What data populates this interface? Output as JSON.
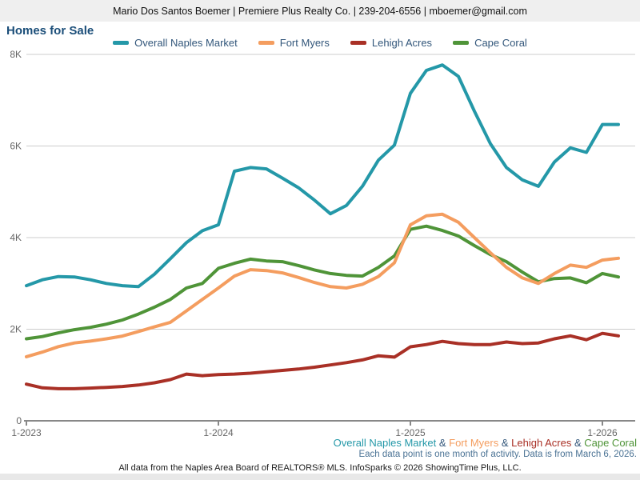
{
  "header": {
    "contact": "Mario Dos Santos Boemer | Premiere Plus Realty Co. | 239-204-6556 | mboemer@gmail.com"
  },
  "title": "Homes for Sale",
  "colors": {
    "teal": "#2498A8",
    "orange": "#F49D5F",
    "dark_red": "#A93026",
    "green": "#4F9438",
    "legend_text": "#33577B",
    "title_text": "#1B4E79",
    "axis_label": "#666666",
    "gridline": "#CCCCCC",
    "axis_line": "#888888",
    "header_bg": "#EFEFEF",
    "note_text": "#4A7294"
  },
  "chart_data": {
    "type": "line",
    "title": "Homes for Sale",
    "xlabel": "",
    "ylabel": "",
    "ylim": [
      0,
      8000
    ],
    "grid": true,
    "legend_position": "top-center",
    "y_ticks": [
      {
        "v": 0,
        "label": "0"
      },
      {
        "v": 2000,
        "label": "2K"
      },
      {
        "v": 4000,
        "label": "4K"
      },
      {
        "v": 6000,
        "label": "6K"
      },
      {
        "v": 8000,
        "label": "8K"
      }
    ],
    "x_ticks": [
      {
        "i": 0,
        "label": "1-2023"
      },
      {
        "i": 12,
        "label": "1-2024"
      },
      {
        "i": 24,
        "label": "1-2025"
      },
      {
        "i": 36,
        "label": "1-2026"
      }
    ],
    "months": [
      "2023-01",
      "2023-02",
      "2023-03",
      "2023-04",
      "2023-05",
      "2023-06",
      "2023-07",
      "2023-08",
      "2023-09",
      "2023-10",
      "2023-11",
      "2023-12",
      "2024-01",
      "2024-02",
      "2024-03",
      "2024-04",
      "2024-05",
      "2024-06",
      "2024-07",
      "2024-08",
      "2024-09",
      "2024-10",
      "2024-11",
      "2024-12",
      "2025-01",
      "2025-02",
      "2025-03",
      "2025-04",
      "2025-05",
      "2025-06",
      "2025-07",
      "2025-08",
      "2025-09",
      "2025-10",
      "2025-11",
      "2025-12",
      "2026-01",
      "2026-02"
    ],
    "series": [
      {
        "name": "Overall Naples Market",
        "color": "#2498A8",
        "values": [
          2950,
          3080,
          3150,
          3140,
          3080,
          3000,
          2950,
          2930,
          3200,
          3540,
          3890,
          4150,
          4280,
          5450,
          5530,
          5500,
          5300,
          5090,
          4820,
          4520,
          4700,
          5120,
          5690,
          6020,
          7150,
          7650,
          7770,
          7520,
          6760,
          6050,
          5530,
          5260,
          5120,
          5650,
          5960,
          5860,
          6470,
          6470
        ]
      },
      {
        "name": "Fort Myers",
        "color": "#F49D5F",
        "values": [
          1400,
          1500,
          1620,
          1700,
          1740,
          1790,
          1850,
          1950,
          2050,
          2150,
          2400,
          2650,
          2900,
          3160,
          3300,
          3280,
          3230,
          3130,
          3020,
          2930,
          2900,
          2980,
          3150,
          3450,
          4280,
          4475,
          4510,
          4335,
          4000,
          3670,
          3350,
          3120,
          3000,
          3215,
          3400,
          3350,
          3510,
          3550
        ]
      },
      {
        "name": "Lehigh Acres",
        "color": "#A93026",
        "values": [
          800,
          720,
          700,
          700,
          715,
          730,
          750,
          780,
          830,
          900,
          1020,
          985,
          1010,
          1020,
          1040,
          1070,
          1100,
          1130,
          1170,
          1220,
          1270,
          1330,
          1420,
          1390,
          1615,
          1665,
          1735,
          1685,
          1665,
          1665,
          1720,
          1685,
          1700,
          1790,
          1855,
          1770,
          1910,
          1855
        ]
      },
      {
        "name": "Cape Coral",
        "color": "#4F9438",
        "values": [
          1790,
          1840,
          1920,
          1990,
          2040,
          2110,
          2200,
          2330,
          2480,
          2650,
          2900,
          3000,
          3330,
          3440,
          3530,
          3490,
          3475,
          3390,
          3295,
          3215,
          3175,
          3160,
          3350,
          3600,
          4180,
          4250,
          4155,
          4035,
          3825,
          3630,
          3475,
          3245,
          3035,
          3105,
          3120,
          3015,
          3215,
          3140
        ]
      }
    ]
  },
  "notes": {
    "series_joiner": " & ",
    "data_note": "Each data point is one month of activity. Data is from March 6, 2026.",
    "footer": "All data from the Naples Area Board of REALTORS® MLS. InfoSparks © 2026 ShowingTime Plus, LLC."
  }
}
